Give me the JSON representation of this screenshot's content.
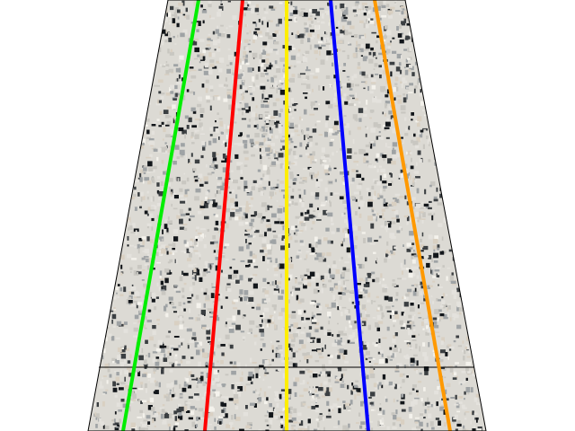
{
  "scene": {
    "background_color": "#ffffff",
    "lane_surface": "speckled-granite",
    "granite_colors": [
      "#e4e2dd",
      "#c9c7c1",
      "#9fa3a5",
      "#d9d0c2",
      "#3b3f42",
      "#12161a",
      "#f4f2ec"
    ],
    "edge_color": "#000000",
    "foul_line_visible": true,
    "lane_guides": [
      {
        "name": "green",
        "color": "#00ee00"
      },
      {
        "name": "red",
        "color": "#ff0000"
      },
      {
        "name": "yellow",
        "color": "#ffee00"
      },
      {
        "name": "blue",
        "color": "#0000ff"
      },
      {
        "name": "orange",
        "color": "#ff9900"
      }
    ]
  }
}
